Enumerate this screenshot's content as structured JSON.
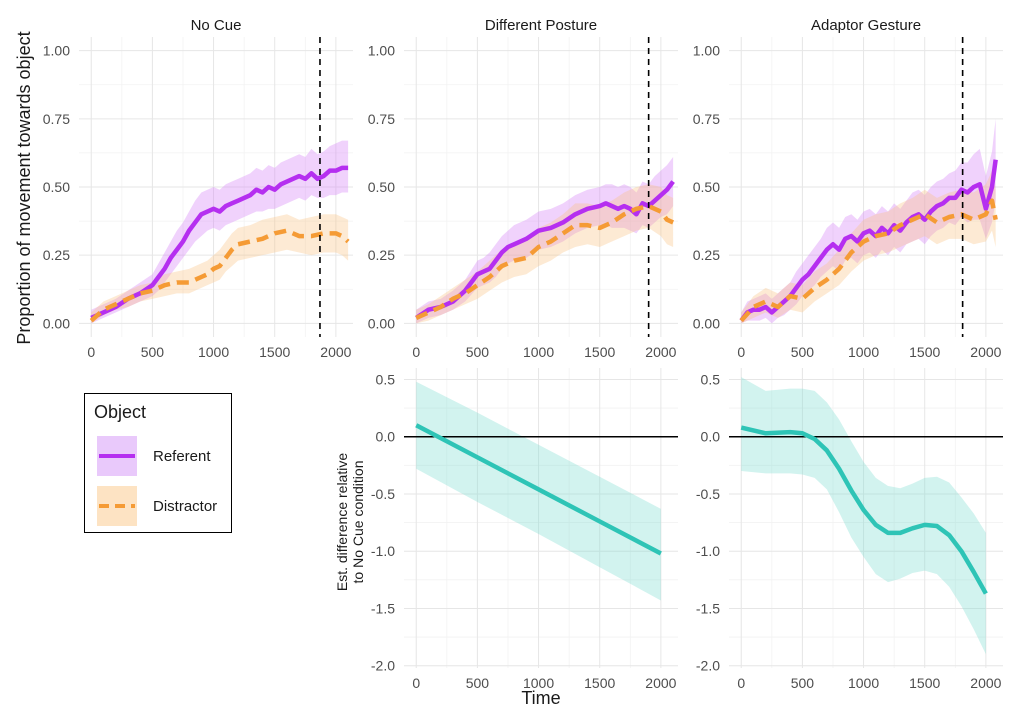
{
  "chart_data": [
    {
      "panel": "No Cue",
      "type": "line",
      "ylabel": "Proportion of movement towards object",
      "xlim": [
        -100,
        2140
      ],
      "ylim": [
        -0.05,
        1.05
      ],
      "xticks": [
        0,
        500,
        1000,
        1500,
        2000
      ],
      "yticks": [
        0,
        0.25,
        0.5,
        0.75,
        1
      ],
      "ytick_labels": [
        "0.00",
        "0.25",
        "0.50",
        "0.75",
        "1.00"
      ],
      "vline": 1870,
      "series": [
        {
          "name": "Referent",
          "color": "#b52ff0",
          "linestyle": "solid",
          "x": [
            0,
            100,
            200,
            300,
            400,
            500,
            550,
            600,
            650,
            700,
            750,
            800,
            850,
            900,
            950,
            1000,
            1050,
            1100,
            1150,
            1200,
            1250,
            1300,
            1350,
            1400,
            1450,
            1500,
            1550,
            1600,
            1650,
            1700,
            1750,
            1800,
            1850,
            1900,
            1950,
            2000,
            2050,
            2100
          ],
          "y": [
            0.02,
            0.04,
            0.06,
            0.09,
            0.11,
            0.14,
            0.17,
            0.2,
            0.24,
            0.27,
            0.3,
            0.34,
            0.37,
            0.4,
            0.41,
            0.42,
            0.41,
            0.43,
            0.44,
            0.45,
            0.46,
            0.47,
            0.49,
            0.48,
            0.5,
            0.49,
            0.51,
            0.52,
            0.53,
            0.54,
            0.53,
            0.55,
            0.53,
            0.54,
            0.56,
            0.56,
            0.57,
            0.57
          ],
          "lower": [
            0.0,
            0.02,
            0.04,
            0.06,
            0.08,
            0.1,
            0.12,
            0.15,
            0.18,
            0.21,
            0.24,
            0.27,
            0.3,
            0.32,
            0.34,
            0.35,
            0.34,
            0.36,
            0.37,
            0.38,
            0.39,
            0.4,
            0.41,
            0.41,
            0.42,
            0.42,
            0.43,
            0.44,
            0.45,
            0.46,
            0.45,
            0.47,
            0.46,
            0.46,
            0.47,
            0.47,
            0.48,
            0.48
          ],
          "upper": [
            0.05,
            0.07,
            0.09,
            0.12,
            0.15,
            0.18,
            0.22,
            0.26,
            0.3,
            0.34,
            0.37,
            0.41,
            0.45,
            0.48,
            0.49,
            0.5,
            0.49,
            0.51,
            0.52,
            0.53,
            0.54,
            0.55,
            0.57,
            0.56,
            0.58,
            0.57,
            0.59,
            0.6,
            0.61,
            0.62,
            0.61,
            0.64,
            0.62,
            0.63,
            0.65,
            0.66,
            0.67,
            0.67
          ]
        },
        {
          "name": "Distractor",
          "color": "#f59b35",
          "linestyle": "dashed",
          "x": [
            0,
            100,
            200,
            300,
            400,
            500,
            600,
            700,
            800,
            900,
            950,
            1000,
            1050,
            1100,
            1150,
            1200,
            1300,
            1400,
            1500,
            1600,
            1700,
            1800,
            1900,
            2000,
            2050,
            2100
          ],
          "y": [
            0.01,
            0.05,
            0.07,
            0.09,
            0.11,
            0.12,
            0.14,
            0.15,
            0.15,
            0.17,
            0.18,
            0.2,
            0.21,
            0.24,
            0.27,
            0.29,
            0.3,
            0.31,
            0.33,
            0.34,
            0.32,
            0.32,
            0.33,
            0.33,
            0.32,
            0.3
          ],
          "lower": [
            0.0,
            0.03,
            0.05,
            0.06,
            0.08,
            0.09,
            0.1,
            0.11,
            0.11,
            0.13,
            0.14,
            0.15,
            0.16,
            0.19,
            0.21,
            0.23,
            0.24,
            0.25,
            0.26,
            0.27,
            0.26,
            0.25,
            0.26,
            0.26,
            0.25,
            0.23
          ],
          "upper": [
            0.04,
            0.08,
            0.1,
            0.12,
            0.14,
            0.15,
            0.18,
            0.19,
            0.2,
            0.22,
            0.23,
            0.25,
            0.27,
            0.3,
            0.33,
            0.35,
            0.36,
            0.38,
            0.39,
            0.4,
            0.38,
            0.39,
            0.4,
            0.4,
            0.39,
            0.38
          ]
        }
      ]
    },
    {
      "panel": "Different Posture",
      "type": "line",
      "xlim": [
        -100,
        2140
      ],
      "ylim": [
        -0.05,
        1.05
      ],
      "xticks": [
        0,
        500,
        1000,
        1500,
        2000
      ],
      "yticks": [
        0,
        0.25,
        0.5,
        0.75,
        1
      ],
      "ytick_labels": [
        "0.00",
        "0.25",
        "0.50",
        "0.75",
        "1.00"
      ],
      "vline": 1900,
      "series": [
        {
          "name": "Referent",
          "color": "#b52ff0",
          "linestyle": "solid",
          "x": [
            0,
            100,
            200,
            300,
            400,
            500,
            550,
            600,
            650,
            700,
            750,
            800,
            900,
            1000,
            1100,
            1200,
            1300,
            1400,
            1500,
            1550,
            1600,
            1650,
            1700,
            1750,
            1800,
            1850,
            1900,
            1950,
            2000,
            2050,
            2100
          ],
          "y": [
            0.02,
            0.05,
            0.06,
            0.08,
            0.12,
            0.18,
            0.19,
            0.2,
            0.23,
            0.26,
            0.28,
            0.29,
            0.31,
            0.34,
            0.35,
            0.37,
            0.4,
            0.42,
            0.43,
            0.44,
            0.43,
            0.42,
            0.43,
            0.42,
            0.4,
            0.44,
            0.43,
            0.45,
            0.47,
            0.49,
            0.52
          ],
          "lower": [
            0.0,
            0.02,
            0.03,
            0.05,
            0.08,
            0.13,
            0.14,
            0.15,
            0.17,
            0.2,
            0.22,
            0.23,
            0.24,
            0.27,
            0.28,
            0.3,
            0.33,
            0.35,
            0.36,
            0.36,
            0.35,
            0.35,
            0.35,
            0.34,
            0.33,
            0.36,
            0.35,
            0.37,
            0.39,
            0.4,
            0.43
          ],
          "upper": [
            0.05,
            0.08,
            0.09,
            0.12,
            0.16,
            0.23,
            0.24,
            0.26,
            0.29,
            0.32,
            0.34,
            0.36,
            0.38,
            0.41,
            0.42,
            0.44,
            0.47,
            0.49,
            0.5,
            0.51,
            0.51,
            0.5,
            0.51,
            0.5,
            0.48,
            0.52,
            0.51,
            0.54,
            0.56,
            0.58,
            0.61
          ]
        },
        {
          "name": "Distractor",
          "color": "#f59b35",
          "linestyle": "dashed",
          "x": [
            0,
            100,
            200,
            300,
            400,
            500,
            600,
            700,
            800,
            900,
            1000,
            1100,
            1200,
            1300,
            1400,
            1500,
            1600,
            1700,
            1800,
            1900,
            2000,
            2050,
            2100
          ],
          "y": [
            0.02,
            0.04,
            0.06,
            0.09,
            0.11,
            0.14,
            0.17,
            0.21,
            0.23,
            0.24,
            0.28,
            0.3,
            0.33,
            0.36,
            0.36,
            0.35,
            0.37,
            0.4,
            0.42,
            0.43,
            0.41,
            0.38,
            0.37
          ],
          "lower": [
            0.0,
            0.01,
            0.03,
            0.05,
            0.07,
            0.09,
            0.12,
            0.15,
            0.17,
            0.18,
            0.21,
            0.23,
            0.26,
            0.28,
            0.29,
            0.28,
            0.3,
            0.32,
            0.34,
            0.35,
            0.32,
            0.29,
            0.28
          ],
          "upper": [
            0.05,
            0.07,
            0.1,
            0.13,
            0.16,
            0.19,
            0.23,
            0.27,
            0.29,
            0.31,
            0.35,
            0.37,
            0.4,
            0.44,
            0.44,
            0.43,
            0.45,
            0.48,
            0.5,
            0.51,
            0.5,
            0.47,
            0.46
          ]
        }
      ]
    },
    {
      "panel": "Adaptor Gesture",
      "type": "line",
      "xlim": [
        -100,
        2140
      ],
      "ylim": [
        -0.05,
        1.05
      ],
      "xticks": [
        0,
        500,
        1000,
        1500,
        2000
      ],
      "yticks": [
        0,
        0.25,
        0.5,
        0.75,
        1
      ],
      "ytick_labels": [
        "0.00",
        "0.25",
        "0.50",
        "0.75",
        "1.00"
      ],
      "vline": 1810,
      "series": [
        {
          "name": "Referent",
          "color": "#b52ff0",
          "linestyle": "solid",
          "x": [
            0,
            50,
            100,
            150,
            200,
            250,
            300,
            350,
            400,
            450,
            500,
            550,
            600,
            650,
            700,
            750,
            800,
            850,
            900,
            950,
            1000,
            1050,
            1100,
            1150,
            1200,
            1250,
            1300,
            1350,
            1400,
            1450,
            1500,
            1550,
            1600,
            1650,
            1700,
            1750,
            1800,
            1850,
            1900,
            1950,
            2000,
            2050,
            2080
          ],
          "y": [
            0.01,
            0.04,
            0.05,
            0.05,
            0.06,
            0.04,
            0.06,
            0.08,
            0.1,
            0.13,
            0.16,
            0.18,
            0.21,
            0.24,
            0.27,
            0.29,
            0.27,
            0.31,
            0.32,
            0.3,
            0.33,
            0.34,
            0.32,
            0.35,
            0.33,
            0.36,
            0.34,
            0.37,
            0.39,
            0.4,
            0.38,
            0.41,
            0.43,
            0.44,
            0.46,
            0.46,
            0.49,
            0.48,
            0.5,
            0.51,
            0.42,
            0.5,
            0.6
          ],
          "lower": [
            0.0,
            0.01,
            0.01,
            0.01,
            0.02,
            0.0,
            0.02,
            0.03,
            0.05,
            0.07,
            0.1,
            0.12,
            0.14,
            0.17,
            0.19,
            0.21,
            0.19,
            0.23,
            0.24,
            0.22,
            0.25,
            0.26,
            0.24,
            0.27,
            0.25,
            0.28,
            0.26,
            0.29,
            0.3,
            0.31,
            0.29,
            0.32,
            0.34,
            0.35,
            0.37,
            0.36,
            0.39,
            0.37,
            0.38,
            0.38,
            0.31,
            0.37,
            0.45
          ],
          "upper": [
            0.04,
            0.08,
            0.09,
            0.1,
            0.11,
            0.09,
            0.11,
            0.13,
            0.15,
            0.19,
            0.22,
            0.25,
            0.28,
            0.31,
            0.35,
            0.37,
            0.35,
            0.39,
            0.4,
            0.38,
            0.41,
            0.42,
            0.4,
            0.43,
            0.41,
            0.44,
            0.42,
            0.45,
            0.48,
            0.49,
            0.47,
            0.5,
            0.52,
            0.53,
            0.55,
            0.56,
            0.59,
            0.59,
            0.62,
            0.64,
            0.54,
            0.63,
            0.75
          ]
        },
        {
          "name": "Distractor",
          "color": "#f59b35",
          "linestyle": "dashed",
          "x": [
            0,
            100,
            200,
            300,
            400,
            500,
            600,
            700,
            800,
            900,
            1000,
            1100,
            1200,
            1300,
            1400,
            1500,
            1600,
            1700,
            1800,
            1900,
            2000,
            2050,
            2080
          ],
          "y": [
            0.01,
            0.06,
            0.08,
            0.06,
            0.1,
            0.09,
            0.13,
            0.16,
            0.2,
            0.26,
            0.3,
            0.32,
            0.33,
            0.36,
            0.38,
            0.4,
            0.37,
            0.39,
            0.4,
            0.38,
            0.4,
            0.45,
            0.38
          ],
          "lower": [
            0.0,
            0.02,
            0.04,
            0.02,
            0.05,
            0.04,
            0.08,
            0.11,
            0.14,
            0.19,
            0.23,
            0.25,
            0.26,
            0.28,
            0.3,
            0.32,
            0.29,
            0.31,
            0.31,
            0.29,
            0.3,
            0.34,
            0.28
          ],
          "upper": [
            0.04,
            0.1,
            0.13,
            0.11,
            0.15,
            0.14,
            0.19,
            0.22,
            0.27,
            0.33,
            0.38,
            0.4,
            0.41,
            0.44,
            0.46,
            0.49,
            0.46,
            0.48,
            0.49,
            0.48,
            0.51,
            0.56,
            0.49
          ]
        }
      ]
    },
    {
      "panel": "Different Posture difference",
      "type": "line",
      "xlabel": "Time",
      "ylabel": [
        "Est. difference relative",
        "to No Cue condition"
      ],
      "xlim": [
        -100,
        2140
      ],
      "ylim": [
        -2.02,
        0.6
      ],
      "xticks": [
        0,
        500,
        1000,
        1500,
        2000
      ],
      "yticks": [
        -2,
        -1.5,
        -1,
        -0.5,
        0,
        0.5
      ],
      "ytick_labels": [
        "-2.0",
        "-1.5",
        "-1.0",
        "-0.5",
        "0.0",
        "0.5"
      ],
      "hline": 0,
      "series": [
        {
          "color": "#2ec4b6",
          "x": [
            0,
            500,
            1000,
            1500,
            2000
          ],
          "y": [
            0.1,
            -0.18,
            -0.46,
            -0.74,
            -1.02
          ],
          "lower": [
            -0.28,
            -0.57,
            -0.85,
            -1.14,
            -1.43
          ],
          "upper": [
            0.48,
            0.21,
            -0.07,
            -0.35,
            -0.63
          ]
        }
      ]
    },
    {
      "panel": "Adaptor Gesture difference",
      "type": "line",
      "xlabel": "Time",
      "xlim": [
        -100,
        2140
      ],
      "ylim": [
        -2.02,
        0.6
      ],
      "xticks": [
        0,
        500,
        1000,
        1500,
        2000
      ],
      "yticks": [
        -2,
        -1.5,
        -1,
        -0.5,
        0,
        0.5
      ],
      "ytick_labels": [
        "-2.0",
        "-1.5",
        "-1.0",
        "-0.5",
        "0.0",
        "0.5"
      ],
      "hline": 0,
      "series": [
        {
          "color": "#2ec4b6",
          "x": [
            0,
            200,
            400,
            500,
            600,
            700,
            800,
            900,
            1000,
            1100,
            1200,
            1300,
            1400,
            1500,
            1600,
            1700,
            1800,
            1900,
            2000
          ],
          "y": [
            0.08,
            0.03,
            0.04,
            0.03,
            -0.02,
            -0.12,
            -0.28,
            -0.47,
            -0.64,
            -0.77,
            -0.84,
            -0.84,
            -0.8,
            -0.77,
            -0.78,
            -0.86,
            -1.0,
            -1.18,
            -1.37
          ],
          "lower": [
            -0.3,
            -0.32,
            -0.32,
            -0.33,
            -0.36,
            -0.46,
            -0.66,
            -0.88,
            -1.05,
            -1.2,
            -1.27,
            -1.24,
            -1.19,
            -1.17,
            -1.2,
            -1.31,
            -1.48,
            -1.68,
            -1.9
          ],
          "upper": [
            0.52,
            0.4,
            0.42,
            0.42,
            0.4,
            0.3,
            0.15,
            -0.04,
            -0.22,
            -0.36,
            -0.43,
            -0.45,
            -0.41,
            -0.36,
            -0.35,
            -0.4,
            -0.53,
            -0.67,
            -0.84
          ]
        }
      ]
    }
  ],
  "legend": {
    "title": "Object",
    "items": [
      {
        "label": "Referent",
        "color": "#b52ff0",
        "fill": "#e9c9fb"
      },
      {
        "label": "Distractor",
        "color": "#f59b35",
        "fill": "#fde3c3"
      }
    ]
  }
}
